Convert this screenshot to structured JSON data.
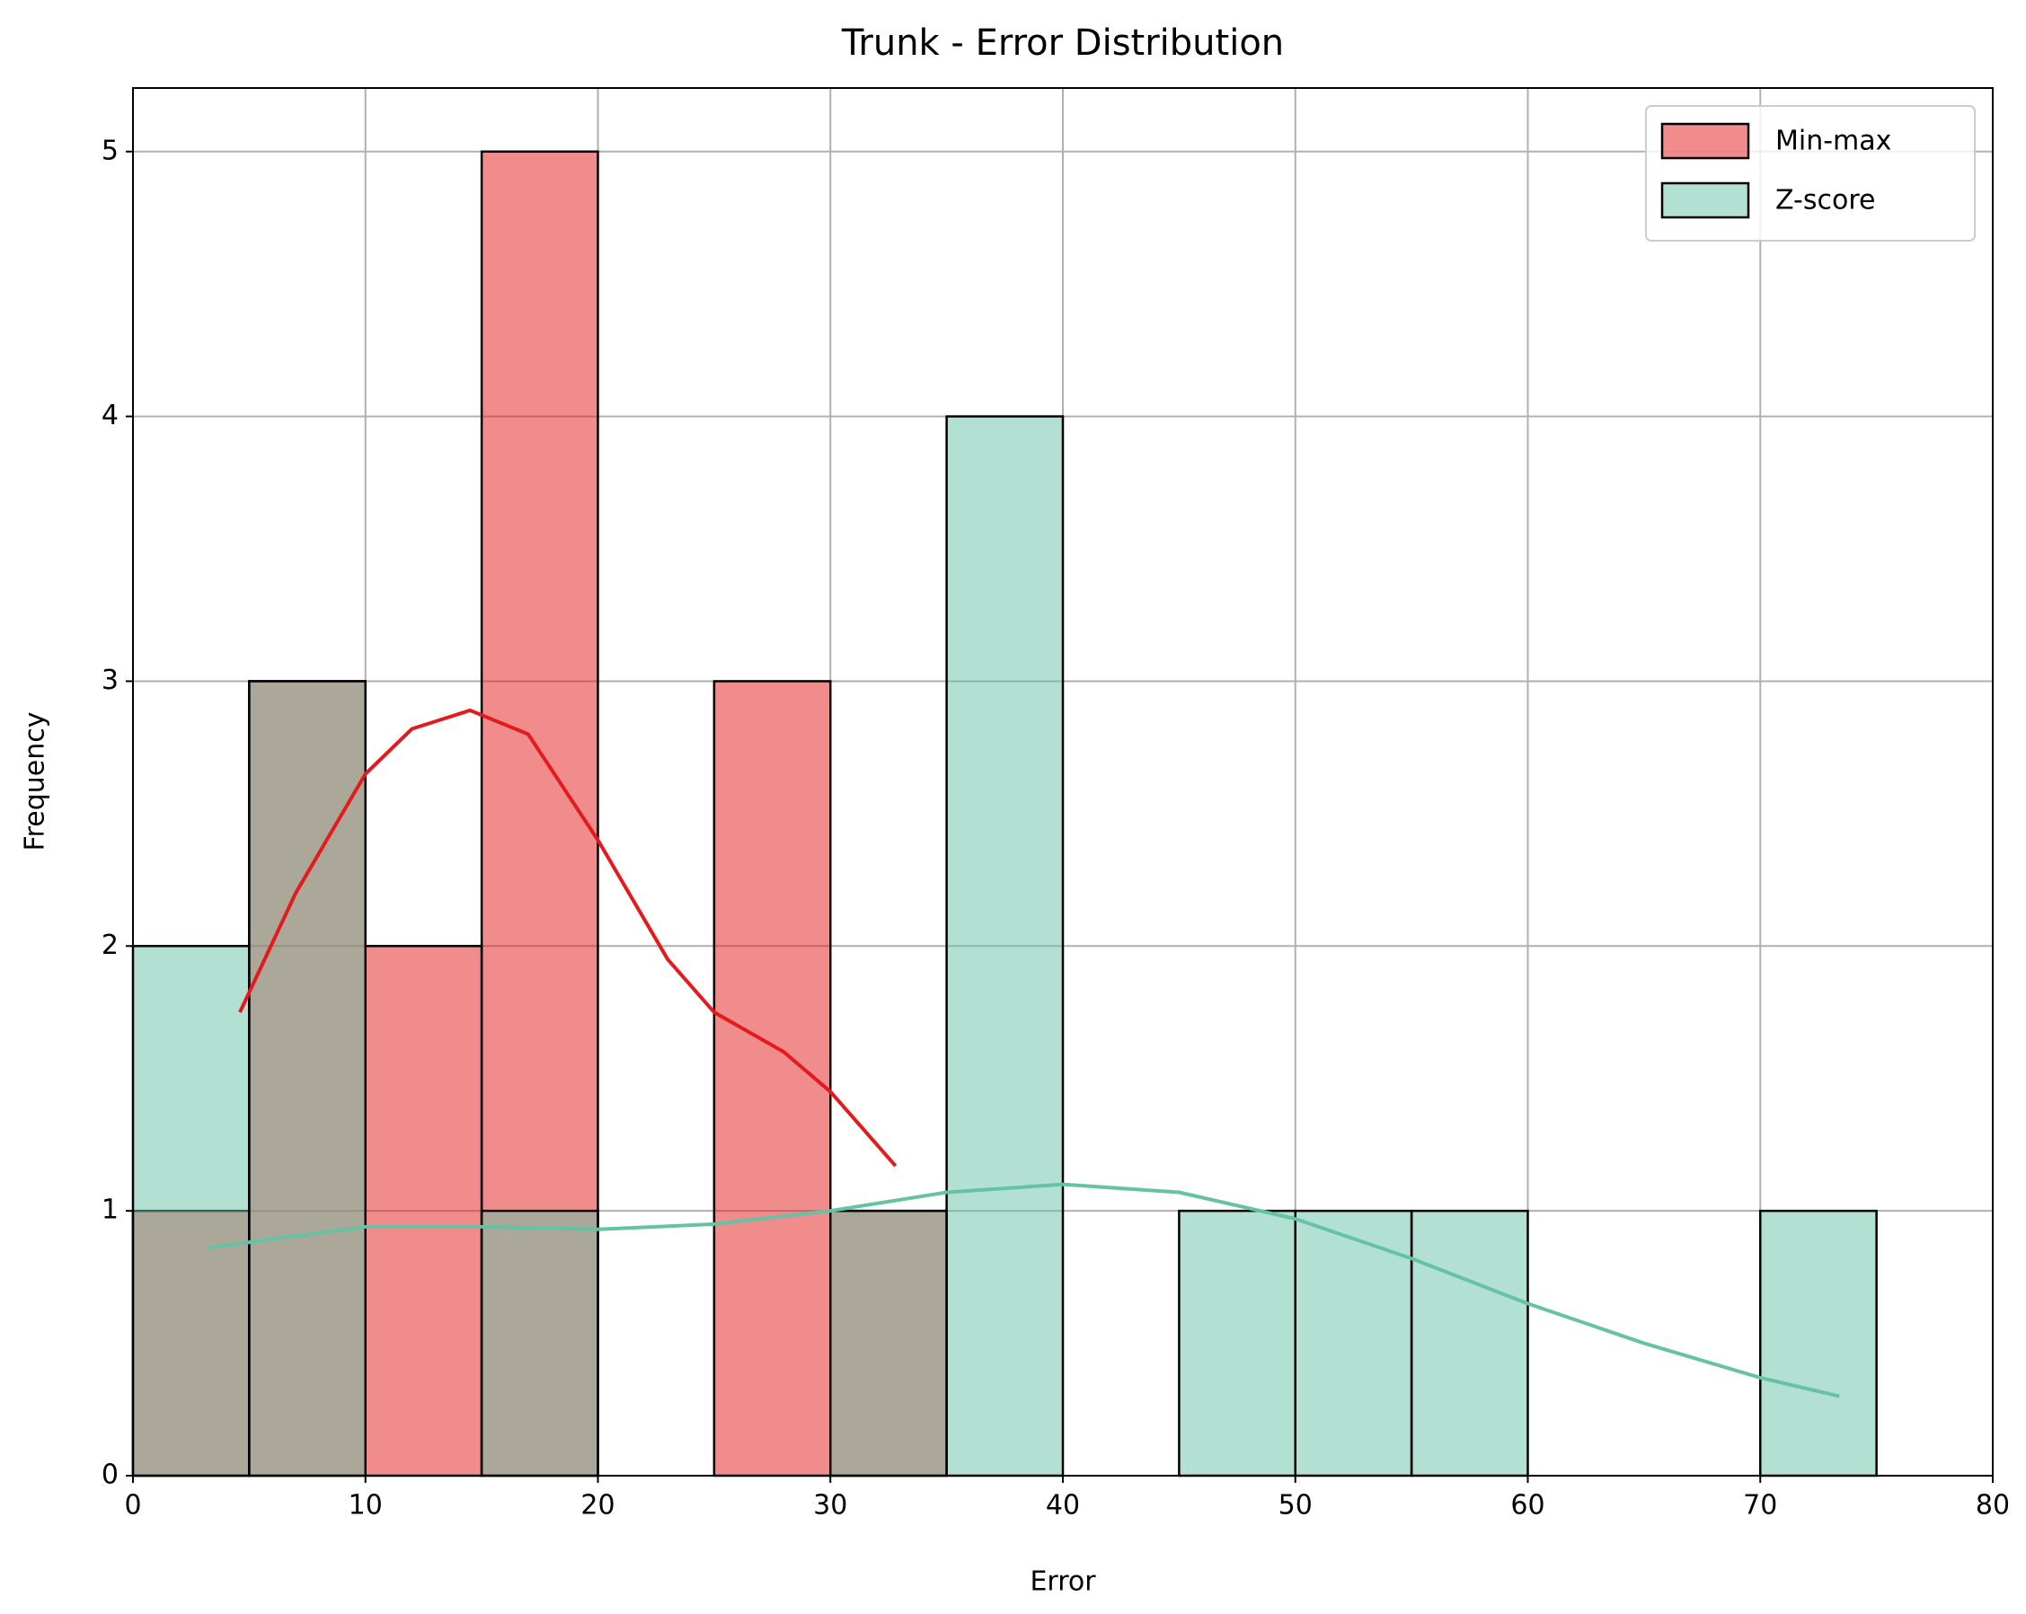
{
  "chart_data": {
    "type": "histogram",
    "title": "Trunk - Error Distribution",
    "x_label": "Error",
    "y_label": "Frequency",
    "bins": [
      0,
      5,
      10,
      15,
      20,
      25,
      30,
      35,
      40,
      45,
      50,
      55,
      60,
      65,
      70,
      75
    ],
    "series": [
      {
        "name": "Min-max",
        "color": "#e41a1c",
        "values": [
          1,
          3,
          2,
          5,
          0,
          3,
          1,
          0,
          0,
          0,
          0,
          0,
          0,
          0,
          0
        ],
        "kde": {
          "x": [
            4.6,
            7,
            10,
            12,
            14.5,
            17,
            20,
            23,
            25,
            28,
            30,
            32.8
          ],
          "y": [
            1.75,
            2.2,
            2.65,
            2.82,
            2.89,
            2.8,
            2.4,
            1.95,
            1.75,
            1.6,
            1.45,
            1.17
          ]
        }
      },
      {
        "name": "Z-score",
        "color": "#66c2a5",
        "values": [
          2,
          3,
          0,
          1,
          0,
          0,
          1,
          4,
          0,
          1,
          1,
          1,
          0,
          0,
          1
        ],
        "kde": {
          "x": [
            3.2,
            10,
            15,
            20,
            25,
            30,
            35,
            40,
            45,
            50,
            55,
            60,
            65,
            70,
            73.4
          ],
          "y": [
            0.86,
            0.94,
            0.94,
            0.93,
            0.95,
            1.0,
            1.07,
            1.1,
            1.07,
            0.97,
            0.82,
            0.65,
            0.5,
            0.37,
            0.3
          ]
        }
      }
    ],
    "xlim": [
      0,
      80
    ],
    "xticks": [
      0,
      10,
      20,
      30,
      40,
      50,
      60,
      70,
      80
    ],
    "ylim": [
      0,
      5.24
    ],
    "yticks": [
      0,
      1,
      2,
      3,
      4,
      5
    ],
    "grid": true,
    "legend": "upper right"
  }
}
